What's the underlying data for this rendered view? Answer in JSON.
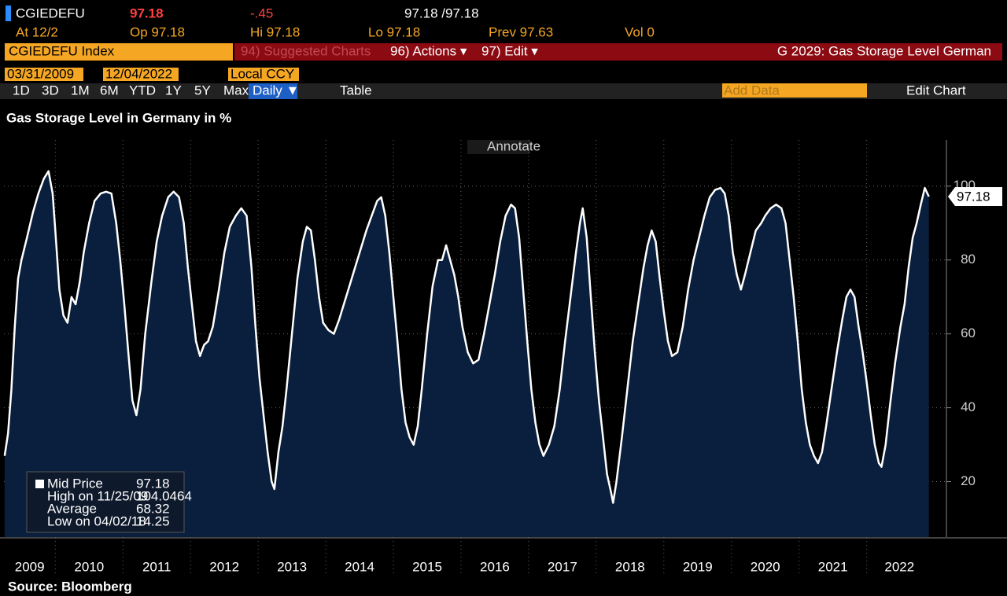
{
  "header": {
    "ticker": "CGIEDEFU",
    "last": "97.18",
    "change": "-.45",
    "bid_ask": "97.18 /97.18",
    "row2": [
      "At 12/2",
      "Op 97.18",
      "Hi 97.18",
      "Lo 97.18",
      "Prev 97.63",
      "Vol 0"
    ]
  },
  "menu": {
    "security": "CGIEDEFU Index",
    "suggested": "94) Suggested Charts",
    "actions": "96) Actions ▾",
    "edit": "97) Edit ▾",
    "function": "G 2029: Gas Storage Level German"
  },
  "toolbar": {
    "start": "03/31/2009",
    "end": "12/04/2022",
    "currency": "Local CCY",
    "ranges": [
      "1D",
      "3D",
      "1M",
      "6M",
      "YTD",
      "1Y",
      "5Y",
      "Max"
    ],
    "frequency": "Daily ▼",
    "table": "Table",
    "add_data": "Add Data",
    "edit_chart": "Edit Chart",
    "annotate": "Annotate"
  },
  "legend": {
    "rows": [
      [
        "Mid Price",
        "97.18"
      ],
      [
        "High on 11/25/09",
        "104.0464"
      ],
      [
        "Average",
        "68.32"
      ],
      [
        "Low on 04/02/18",
        "14.25"
      ]
    ]
  },
  "source": "Source: Bloomberg",
  "chart_data": {
    "type": "area",
    "title": "Gas Storage Level in Germany in %",
    "color": "#0a1f3d",
    "line_color": "#ffffff",
    "last_label": "97.18",
    "grid": true,
    "xlim": [
      2009.24,
      2022.97
    ],
    "xticks": [
      2009,
      2010,
      2011,
      2012,
      2013,
      2014,
      2015,
      2016,
      2017,
      2018,
      2019,
      2020,
      2021,
      2022
    ],
    "ylim": [
      5,
      112.5
    ],
    "yticks": [
      20,
      40,
      60,
      80,
      100
    ],
    "x": [
      2009.25,
      2009.3,
      2009.35,
      2009.4,
      2009.45,
      2009.5,
      2009.58,
      2009.67,
      2009.75,
      2009.83,
      2009.9,
      2009.96,
      2010.0,
      2010.06,
      2010.12,
      2010.18,
      2010.24,
      2010.3,
      2010.36,
      2010.42,
      2010.5,
      2010.58,
      2010.67,
      2010.75,
      2010.83,
      2010.9,
      2010.96,
      2011.02,
      2011.08,
      2011.14,
      2011.2,
      2011.26,
      2011.33,
      2011.42,
      2011.5,
      2011.58,
      2011.67,
      2011.75,
      2011.83,
      2011.9,
      2011.96,
      2012.02,
      2012.08,
      2012.14,
      2012.2,
      2012.26,
      2012.33,
      2012.42,
      2012.5,
      2012.58,
      2012.67,
      2012.75,
      2012.83,
      2012.9,
      2012.96,
      2013.02,
      2013.08,
      2013.14,
      2013.2,
      2013.24,
      2013.3,
      2013.36,
      2013.42,
      2013.5,
      2013.58,
      2013.66,
      2013.72,
      2013.78,
      2013.84,
      2013.9,
      2013.96,
      2014.04,
      2014.12,
      2014.2,
      2014.3,
      2014.4,
      2014.5,
      2014.6,
      2014.68,
      2014.76,
      2014.82,
      2014.88,
      2014.94,
      2015.0,
      2015.06,
      2015.12,
      2015.18,
      2015.24,
      2015.3,
      2015.36,
      2015.42,
      2015.5,
      2015.58,
      2015.66,
      2015.72,
      2015.78,
      2015.84,
      2015.9,
      2015.96,
      2016.02,
      2016.1,
      2016.18,
      2016.26,
      2016.34,
      2016.42,
      2016.5,
      2016.58,
      2016.66,
      2016.74,
      2016.8,
      2016.86,
      2016.92,
      2016.98,
      2017.04,
      2017.1,
      2017.16,
      2017.22,
      2017.3,
      2017.38,
      2017.46,
      2017.54,
      2017.62,
      2017.7,
      2017.76,
      2017.8,
      2017.86,
      2017.92,
      2017.98,
      2018.04,
      2018.1,
      2018.16,
      2018.22,
      2018.25,
      2018.3,
      2018.38,
      2018.46,
      2018.54,
      2018.62,
      2018.7,
      2018.76,
      2018.82,
      2018.88,
      2018.94,
      2019.0,
      2019.06,
      2019.12,
      2019.2,
      2019.28,
      2019.36,
      2019.44,
      2019.52,
      2019.6,
      2019.68,
      2019.76,
      2019.84,
      2019.9,
      2019.96,
      2020.02,
      2020.08,
      2020.14,
      2020.2,
      2020.28,
      2020.36,
      2020.44,
      2020.5,
      2020.58,
      2020.66,
      2020.74,
      2020.8,
      2020.86,
      2020.92,
      2020.98,
      2021.04,
      2021.1,
      2021.16,
      2021.22,
      2021.28,
      2021.34,
      2021.4,
      2021.48,
      2021.56,
      2021.64,
      2021.7,
      2021.76,
      2021.82,
      2021.88,
      2021.94,
      2022.0,
      2022.06,
      2022.12,
      2022.18,
      2022.22,
      2022.28,
      2022.34,
      2022.42,
      2022.5,
      2022.56,
      2022.62,
      2022.68,
      2022.74,
      2022.8,
      2022.86,
      2022.92
    ],
    "values": [
      27,
      33,
      45,
      62,
      75,
      80,
      86,
      93,
      98,
      102,
      104.05,
      98,
      88,
      72,
      65,
      63,
      70,
      68,
      74,
      82,
      90,
      96,
      98,
      98.5,
      98,
      90,
      80,
      68,
      55,
      42,
      38,
      45,
      60,
      74,
      85,
      92,
      97,
      98.5,
      97,
      90,
      78,
      68,
      58,
      54,
      57,
      58,
      62,
      72,
      82,
      89,
      92,
      94,
      92,
      78,
      62,
      48,
      38,
      28,
      20,
      18,
      28,
      35,
      45,
      60,
      75,
      85,
      89,
      88,
      80,
      70,
      63,
      61,
      60,
      64,
      70,
      76,
      82,
      88,
      92,
      96,
      97,
      92,
      82,
      70,
      58,
      45,
      36,
      32,
      30,
      35,
      45,
      60,
      73,
      80,
      80,
      84,
      80,
      76,
      70,
      62,
      55,
      52,
      53,
      60,
      68,
      76,
      85,
      92,
      95,
      94,
      86,
      72,
      58,
      45,
      36,
      30,
      27,
      30,
      35,
      45,
      58,
      70,
      82,
      90,
      94,
      86,
      70,
      55,
      42,
      32,
      22,
      17,
      14.25,
      20,
      32,
      45,
      58,
      68,
      78,
      84,
      88,
      85,
      75,
      66,
      58,
      54,
      55,
      62,
      72,
      80,
      86,
      92,
      97,
      99,
      99.5,
      98,
      92,
      82,
      76,
      72,
      76,
      82,
      88,
      90,
      92,
      94,
      95,
      94,
      90,
      80,
      70,
      58,
      45,
      36,
      30,
      27,
      25,
      28,
      35,
      45,
      55,
      64,
      70,
      72,
      70,
      62,
      55,
      47,
      38,
      30,
      25,
      24,
      30,
      40,
      52,
      62,
      68,
      78,
      86,
      90,
      95,
      99.5,
      97.18
    ]
  }
}
